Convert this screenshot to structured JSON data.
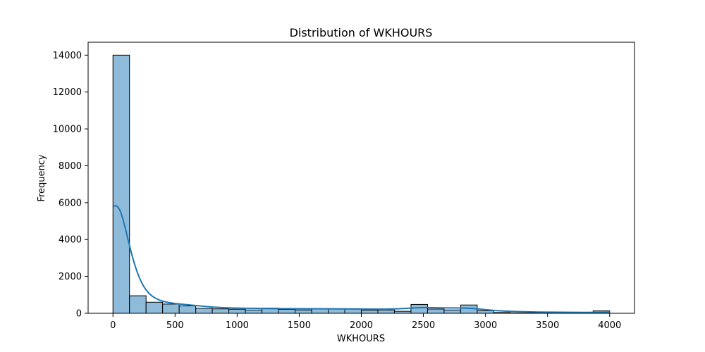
{
  "chart_data": {
    "type": "bar",
    "title": "Distribution of WKHOURS",
    "xlabel": "WKHOURS",
    "ylabel": "Frequency",
    "xlim": [
      -200,
      4200
    ],
    "ylim": [
      0,
      14700
    ],
    "xticks": [
      0,
      500,
      1000,
      1500,
      2000,
      2500,
      3000,
      3500,
      4000
    ],
    "yticks": [
      0,
      2000,
      4000,
      6000,
      8000,
      10000,
      12000,
      14000
    ],
    "grid": false,
    "bin_width": 133.33,
    "bins": [
      {
        "start": 0,
        "count": 14000
      },
      {
        "start": 133.33,
        "count": 950
      },
      {
        "start": 266.67,
        "count": 600
      },
      {
        "start": 400,
        "count": 500
      },
      {
        "start": 533.33,
        "count": 400
      },
      {
        "start": 666.67,
        "count": 270
      },
      {
        "start": 800,
        "count": 240
      },
      {
        "start": 933.33,
        "count": 220
      },
      {
        "start": 1066.67,
        "count": 180
      },
      {
        "start": 1200,
        "count": 280
      },
      {
        "start": 1333.33,
        "count": 210
      },
      {
        "start": 1466.67,
        "count": 180
      },
      {
        "start": 1600,
        "count": 250
      },
      {
        "start": 1733.33,
        "count": 250
      },
      {
        "start": 1866.67,
        "count": 250
      },
      {
        "start": 2000,
        "count": 170
      },
      {
        "start": 2133.33,
        "count": 180
      },
      {
        "start": 2266.67,
        "count": 110
      },
      {
        "start": 2400,
        "count": 480
      },
      {
        "start": 2533.33,
        "count": 230
      },
      {
        "start": 2666.67,
        "count": 180
      },
      {
        "start": 2800,
        "count": 450
      },
      {
        "start": 2933.33,
        "count": 140
      },
      {
        "start": 3066.67,
        "count": 40
      },
      {
        "start": 3200,
        "count": 20
      },
      {
        "start": 3333.33,
        "count": 20
      },
      {
        "start": 3466.67,
        "count": 20
      },
      {
        "start": 3600,
        "count": 20
      },
      {
        "start": 3733.33,
        "count": 20
      },
      {
        "start": 3866.67,
        "count": 130
      }
    ],
    "kde": {
      "x": [
        0,
        25,
        50,
        75,
        100,
        150,
        200,
        250,
        300,
        350,
        400,
        450,
        500,
        600,
        700,
        800,
        900,
        1000,
        1200,
        1400,
        1600,
        1800,
        2000,
        2200,
        2350,
        2500,
        2650,
        2800,
        2900,
        3000,
        3100,
        3300,
        3500,
        3700,
        3900,
        4000
      ],
      "y": [
        5800,
        5850,
        5700,
        5250,
        4600,
        3200,
        2100,
        1400,
        1000,
        780,
        650,
        580,
        530,
        460,
        400,
        340,
        300,
        280,
        260,
        250,
        250,
        240,
        230,
        220,
        260,
        320,
        290,
        290,
        260,
        200,
        130,
        80,
        60,
        50,
        50,
        60
      ]
    },
    "colors": {
      "bar_fill": "#8fbbdb",
      "bar_edge": "#000000",
      "kde_line": "#1f77b4"
    }
  }
}
